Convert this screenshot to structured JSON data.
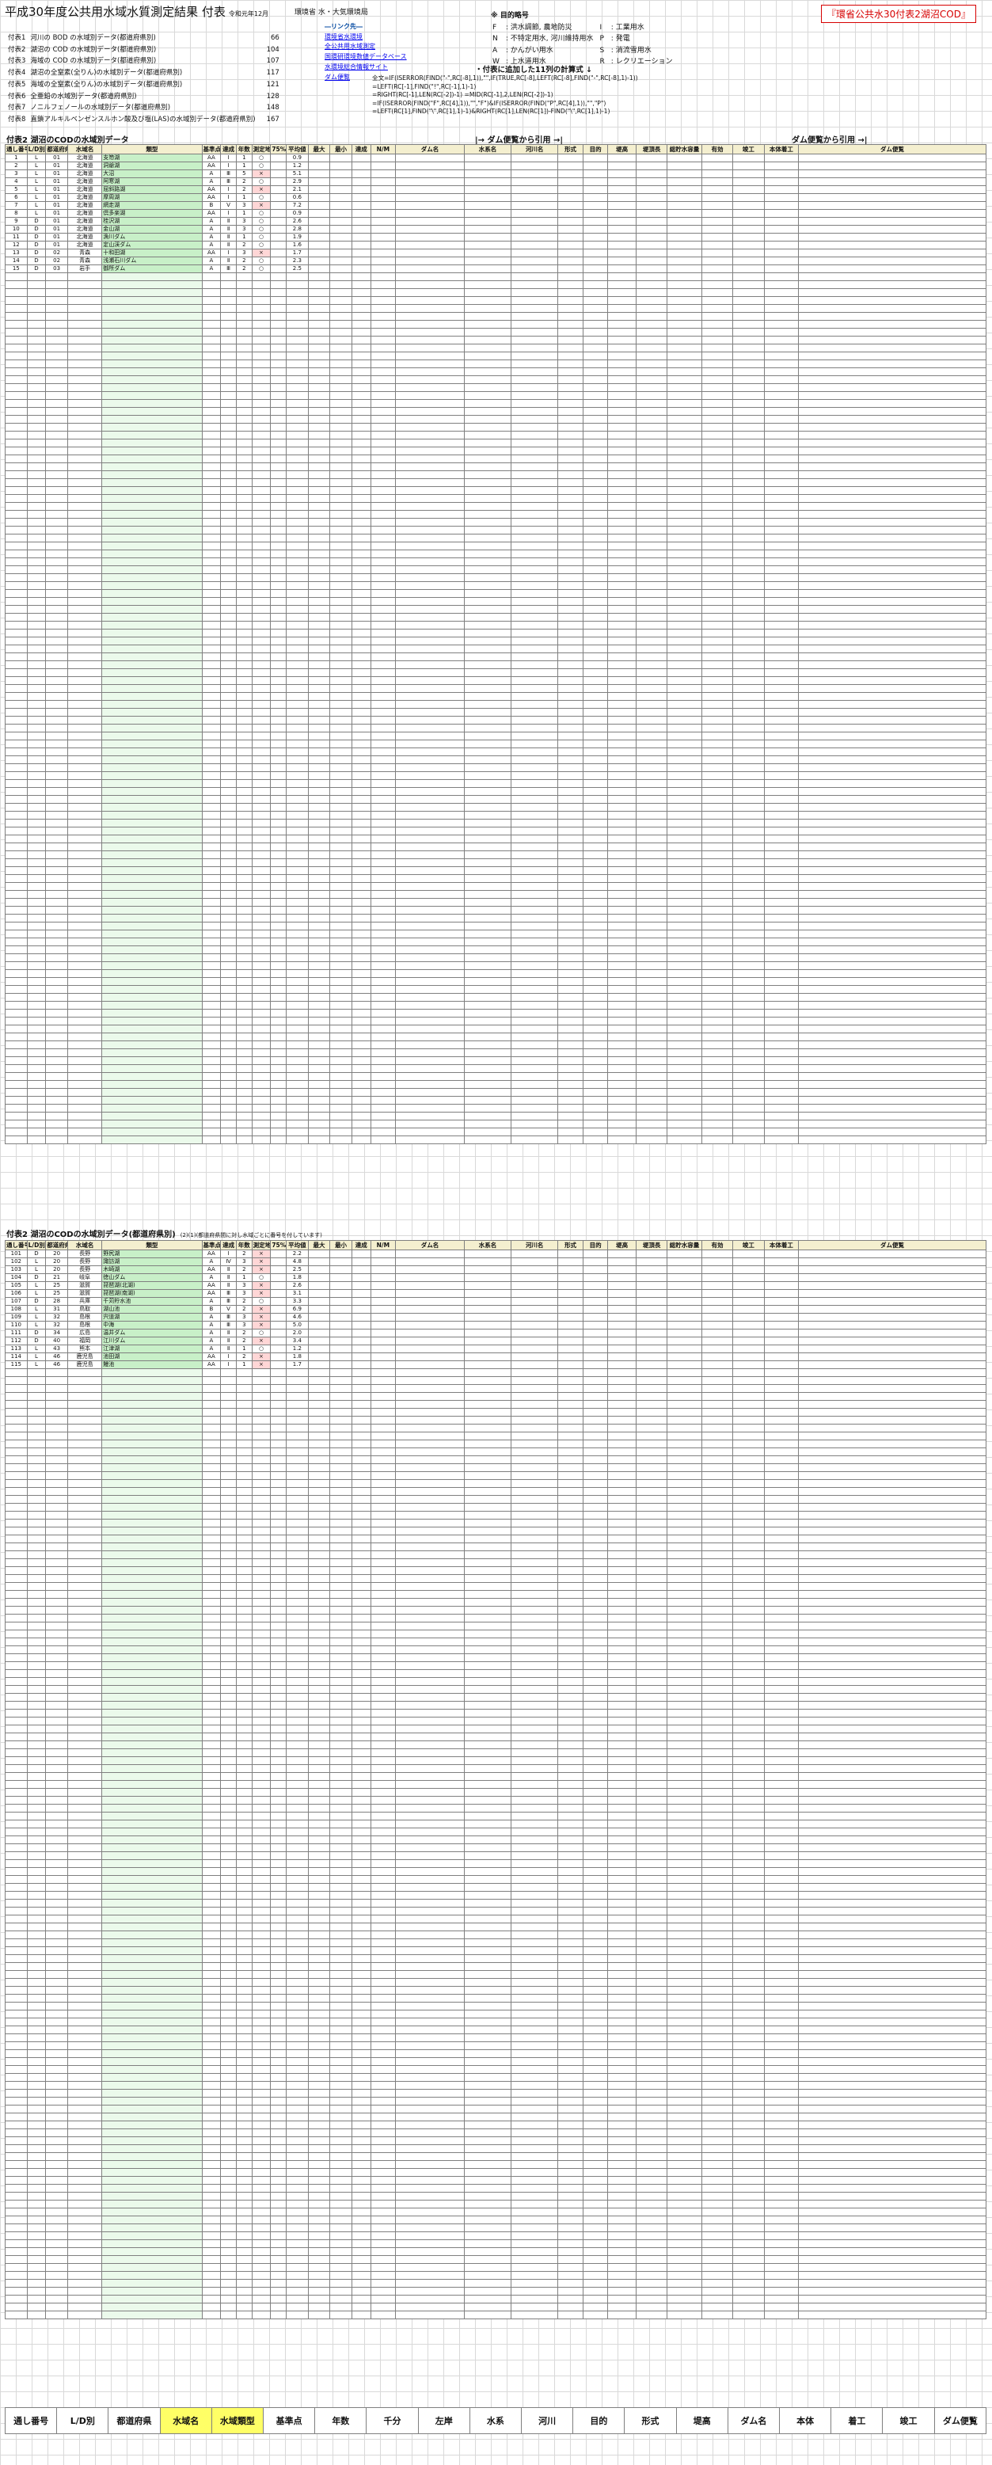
{
  "doc": {
    "title": "平成30年度公共用水域水質測定結果 付表",
    "date": "令和元年12月",
    "agency": "環境省 水・大気環境局",
    "link_red": "『環省公共水30付表2湖沼COD』"
  },
  "toc": [
    {
      "label": "付表1",
      "text": "河川の BOD の水域別データ(都道府県別)",
      "page": "66"
    },
    {
      "label": "付表2",
      "text": "湖沼の COD の水域別データ(都道府県別)",
      "page": "104"
    },
    {
      "label": "付表3",
      "text": "海域の COD の水域別データ(都道府県別)",
      "page": "107"
    },
    {
      "label": "付表4",
      "text": "湖沼の全窒素(全りん)の水域別データ(都道府県別)",
      "page": "117"
    },
    {
      "label": "付表5",
      "text": "海域の全窒素(全りん)の水域別データ(都道府県別)",
      "page": "121"
    },
    {
      "label": "付表6",
      "text": "全亜鉛の水域別データ(都道府県別)",
      "page": "128"
    },
    {
      "label": "付表7",
      "text": "ノニルフェノールの水域別データ(都道府県別)",
      "page": "148"
    },
    {
      "label": "付表8",
      "text": "直鎖アルキルベンゼンスルホン酸及び塩(LAS)の水域別データ(都道府県別)",
      "page": "167"
    }
  ],
  "links": {
    "head": "―リンク先―",
    "items": [
      "環境省水環境",
      "全公共用水域測定",
      "国環研環境数値データベース",
      "水環境総合情報サイト",
      "ダム便覧"
    ]
  },
  "purpose": {
    "head": "※ 目的略号",
    "items": [
      {
        "k": "F",
        "v": "洪水調節, 農地防災"
      },
      {
        "k": "I",
        "v": "工業用水"
      },
      {
        "k": "N",
        "v": "不特定用水, 河川維持用水"
      },
      {
        "k": "P",
        "v": "発電"
      },
      {
        "k": "A",
        "v": "かんがい用水"
      },
      {
        "k": "S",
        "v": "消流雪用水"
      },
      {
        "k": "W",
        "v": "上水道用水"
      },
      {
        "k": "R",
        "v": "レクリエーション"
      }
    ]
  },
  "formula": {
    "head": "・付表に追加した11列の計算式 ↓",
    "lines": [
      "全文=IF(ISERROR(FIND(\"-\",RC[-8],1)),\"\",IF(TRUE,RC[-8],LEFT(RC[-8],FIND(\"-\",RC[-8],1)-1))",
      "=LEFT(RC[-1],FIND(\"!\",RC[-1],1)-1)",
      "=RIGHT(RC[-1],LEN(RC[-2])-1)   =MID(RC[-1],2,LEN(RC[-2])-1)",
      "=IF(ISERROR(FIND(\"F\",RC[4],1)),\"\",\"F\")&IF(ISERROR(FIND(\"P\",RC[4],1)),\"\",\"P\")",
      "=LEFT(RC[1],FIND(\"\\\",RC[1],1)-1)&RIGHT(RC[1],LEN(RC[1])-FIND(\"\\\",RC[1],1)-1)"
    ]
  },
  "sections": {
    "t2a": "付表2 湖沼のCODの水域別データ",
    "t2b": "付表2 湖沼のCODの水域別データ(都道府県別)",
    "t2b_note": "(2)(1)(都道府県間に対し水域ごとに番号を付しています)",
    "flow1": "|→ ダム便覧から引用 →|",
    "flow2": "ダム便覧から引用 →|"
  },
  "header": [
    "通し番号",
    "L/D別",
    "都道府県",
    "水域名",
    "類型",
    "基準点",
    "達成",
    "年数",
    "測定地点",
    "75%値",
    "平均値",
    "最大",
    "最小",
    "達成",
    "N/M",
    "ダム名",
    "水系名",
    "河川名",
    "形式",
    "目的",
    "堤高",
    "堤頂長",
    "総貯水容量",
    "有効",
    "竣工",
    "本体着工",
    "ダム便覧"
  ],
  "rows": [
    [
      "1",
      "L",
      "01",
      "北海道",
      "支笏湖",
      "AA",
      "Ⅰ",
      "1",
      "○",
      "",
      "0.9",
      "",
      "",
      "",
      "",
      "",
      "",
      "",
      "",
      "",
      "",
      "",
      "",
      "",
      "",
      "",
      ""
    ],
    [
      "2",
      "L",
      "01",
      "北海道",
      "洞爺湖",
      "AA",
      "Ⅰ",
      "1",
      "○",
      "",
      "1.2",
      "",
      "",
      "",
      "",
      "",
      "",
      "",
      "",
      "",
      "",
      "",
      "",
      "",
      "",
      "",
      ""
    ],
    [
      "3",
      "L",
      "01",
      "北海道",
      "大沼",
      "A",
      "Ⅲ",
      "5",
      "×",
      "",
      "5.1",
      "",
      "",
      "",
      "",
      "",
      "",
      "",
      "",
      "",
      "",
      "",
      "",
      "",
      "",
      "",
      ""
    ],
    [
      "4",
      "L",
      "01",
      "北海道",
      "阿寒湖",
      "A",
      "Ⅲ",
      "2",
      "○",
      "",
      "2.9",
      "",
      "",
      "",
      "",
      "",
      "",
      "",
      "",
      "",
      "",
      "",
      "",
      "",
      "",
      "",
      ""
    ],
    [
      "5",
      "L",
      "01",
      "北海道",
      "屈斜路湖",
      "AA",
      "Ⅰ",
      "2",
      "×",
      "",
      "2.1",
      "",
      "",
      "",
      "",
      "",
      "",
      "",
      "",
      "",
      "",
      "",
      "",
      "",
      "",
      "",
      ""
    ],
    [
      "6",
      "L",
      "01",
      "北海道",
      "摩周湖",
      "AA",
      "Ⅰ",
      "1",
      "○",
      "",
      "0.6",
      "",
      "",
      "",
      "",
      "",
      "",
      "",
      "",
      "",
      "",
      "",
      "",
      "",
      "",
      "",
      ""
    ],
    [
      "7",
      "L",
      "01",
      "北海道",
      "網走湖",
      "B",
      "Ⅴ",
      "3",
      "×",
      "",
      "7.2",
      "",
      "",
      "",
      "",
      "",
      "",
      "",
      "",
      "",
      "",
      "",
      "",
      "",
      "",
      "",
      ""
    ],
    [
      "8",
      "L",
      "01",
      "北海道",
      "倶多楽湖",
      "AA",
      "Ⅰ",
      "1",
      "○",
      "",
      "0.9",
      "",
      "",
      "",
      "",
      "",
      "",
      "",
      "",
      "",
      "",
      "",
      "",
      "",
      "",
      "",
      ""
    ],
    [
      "9",
      "D",
      "01",
      "北海道",
      "桂沢湖",
      "A",
      "Ⅱ",
      "3",
      "○",
      "",
      "2.6",
      "",
      "",
      "",
      "",
      "",
      "",
      "",
      "",
      "",
      "",
      "",
      "",
      "",
      "",
      "",
      ""
    ],
    [
      "10",
      "D",
      "01",
      "北海道",
      "金山湖",
      "A",
      "Ⅱ",
      "3",
      "○",
      "",
      "2.8",
      "",
      "",
      "",
      "",
      "",
      "",
      "",
      "",
      "",
      "",
      "",
      "",
      "",
      "",
      "",
      ""
    ],
    [
      "11",
      "D",
      "01",
      "北海道",
      "漁川ダム",
      "A",
      "Ⅱ",
      "1",
      "○",
      "",
      "1.9",
      "",
      "",
      "",
      "",
      "",
      "",
      "",
      "",
      "",
      "",
      "",
      "",
      "",
      "",
      "",
      ""
    ],
    [
      "12",
      "D",
      "01",
      "北海道",
      "定山渓ダム",
      "A",
      "Ⅱ",
      "2",
      "○",
      "",
      "1.6",
      "",
      "",
      "",
      "",
      "",
      "",
      "",
      "",
      "",
      "",
      "",
      "",
      "",
      "",
      "",
      ""
    ],
    [
      "13",
      "D",
      "02",
      "青森",
      "十和田湖",
      "AA",
      "Ⅰ",
      "3",
      "×",
      "",
      "1.7",
      "",
      "",
      "",
      "",
      "",
      "",
      "",
      "",
      "",
      "",
      "",
      "",
      "",
      "",
      "",
      ""
    ],
    [
      "14",
      "D",
      "02",
      "青森",
      "浅瀬石川ダム",
      "A",
      "Ⅱ",
      "2",
      "○",
      "",
      "2.3",
      "",
      "",
      "",
      "",
      "",
      "",
      "",
      "",
      "",
      "",
      "",
      "",
      "",
      "",
      "",
      ""
    ],
    [
      "15",
      "D",
      "03",
      "岩手",
      "御所ダム",
      "A",
      "Ⅲ",
      "2",
      "○",
      "",
      "2.5",
      "",
      "",
      "",
      "",
      "",
      "",
      "",
      "",
      "",
      "",
      "",
      "",
      "",
      "",
      "",
      ""
    ]
  ],
  "rows2": [
    [
      "101",
      "D",
      "20",
      "長野",
      "野尻湖",
      "AA",
      "Ⅰ",
      "2",
      "×",
      "",
      "2.2",
      "",
      "",
      "",
      "",
      "",
      "",
      "",
      "",
      "",
      "",
      "",
      "",
      "",
      "",
      "",
      ""
    ],
    [
      "102",
      "L",
      "20",
      "長野",
      "諏訪湖",
      "A",
      "Ⅳ",
      "3",
      "×",
      "",
      "4.8",
      "",
      "",
      "",
      "",
      "",
      "",
      "",
      "",
      "",
      "",
      "",
      "",
      "",
      "",
      "",
      ""
    ],
    [
      "103",
      "L",
      "20",
      "長野",
      "木崎湖",
      "AA",
      "Ⅱ",
      "2",
      "×",
      "",
      "2.5",
      "",
      "",
      "",
      "",
      "",
      "",
      "",
      "",
      "",
      "",
      "",
      "",
      "",
      "",
      "",
      ""
    ],
    [
      "104",
      "D",
      "21",
      "岐阜",
      "徳山ダム",
      "A",
      "Ⅱ",
      "1",
      "○",
      "",
      "1.8",
      "",
      "",
      "",
      "",
      "",
      "",
      "",
      "",
      "",
      "",
      "",
      "",
      "",
      "",
      "",
      ""
    ],
    [
      "105",
      "L",
      "25",
      "滋賀",
      "琵琶湖(北湖)",
      "AA",
      "Ⅱ",
      "3",
      "×",
      "",
      "2.6",
      "",
      "",
      "",
      "",
      "",
      "",
      "",
      "",
      "",
      "",
      "",
      "",
      "",
      "",
      "",
      ""
    ],
    [
      "106",
      "L",
      "25",
      "滋賀",
      "琵琶湖(南湖)",
      "AA",
      "Ⅲ",
      "3",
      "×",
      "",
      "3.1",
      "",
      "",
      "",
      "",
      "",
      "",
      "",
      "",
      "",
      "",
      "",
      "",
      "",
      "",
      "",
      ""
    ],
    [
      "107",
      "D",
      "28",
      "兵庫",
      "千苅貯水池",
      "A",
      "Ⅲ",
      "2",
      "○",
      "",
      "3.3",
      "",
      "",
      "",
      "",
      "",
      "",
      "",
      "",
      "",
      "",
      "",
      "",
      "",
      "",
      "",
      ""
    ],
    [
      "108",
      "L",
      "31",
      "鳥取",
      "湖山池",
      "B",
      "Ⅴ",
      "2",
      "×",
      "",
      "6.9",
      "",
      "",
      "",
      "",
      "",
      "",
      "",
      "",
      "",
      "",
      "",
      "",
      "",
      "",
      "",
      ""
    ],
    [
      "109",
      "L",
      "32",
      "島根",
      "宍道湖",
      "A",
      "Ⅲ",
      "3",
      "×",
      "",
      "4.6",
      "",
      "",
      "",
      "",
      "",
      "",
      "",
      "",
      "",
      "",
      "",
      "",
      "",
      "",
      "",
      ""
    ],
    [
      "110",
      "L",
      "32",
      "島根",
      "中海",
      "A",
      "Ⅲ",
      "3",
      "×",
      "",
      "5.0",
      "",
      "",
      "",
      "",
      "",
      "",
      "",
      "",
      "",
      "",
      "",
      "",
      "",
      "",
      "",
      ""
    ],
    [
      "111",
      "D",
      "34",
      "広島",
      "温井ダム",
      "A",
      "Ⅱ",
      "2",
      "○",
      "",
      "2.0",
      "",
      "",
      "",
      "",
      "",
      "",
      "",
      "",
      "",
      "",
      "",
      "",
      "",
      "",
      "",
      ""
    ],
    [
      "112",
      "D",
      "40",
      "福岡",
      "江川ダム",
      "A",
      "Ⅱ",
      "2",
      "×",
      "",
      "3.4",
      "",
      "",
      "",
      "",
      "",
      "",
      "",
      "",
      "",
      "",
      "",
      "",
      "",
      "",
      "",
      ""
    ],
    [
      "113",
      "L",
      "43",
      "熊本",
      "江津湖",
      "A",
      "Ⅱ",
      "1",
      "○",
      "",
      "1.2",
      "",
      "",
      "",
      "",
      "",
      "",
      "",
      "",
      "",
      "",
      "",
      "",
      "",
      "",
      "",
      ""
    ],
    [
      "114",
      "L",
      "46",
      "鹿児島",
      "池田湖",
      "AA",
      "Ⅰ",
      "2",
      "×",
      "",
      "1.8",
      "",
      "",
      "",
      "",
      "",
      "",
      "",
      "",
      "",
      "",
      "",
      "",
      "",
      "",
      "",
      ""
    ],
    [
      "115",
      "L",
      "46",
      "鹿児島",
      "鰻池",
      "AA",
      "Ⅰ",
      "1",
      "×",
      "",
      "1.7",
      "",
      "",
      "",
      "",
      "",
      "",
      "",
      "",
      "",
      "",
      "",
      "",
      "",
      "",
      "",
      ""
    ]
  ],
  "footer": [
    "通し番号",
    "L/D別",
    "都道府県",
    "水域名",
    "水域類型",
    "基準点",
    "年数",
    "千分",
    "左岸",
    "水系",
    "河川",
    "目的",
    "形式",
    "堤高",
    "ダム名",
    "本体",
    "着工",
    "竣工",
    "ダム便覧"
  ]
}
